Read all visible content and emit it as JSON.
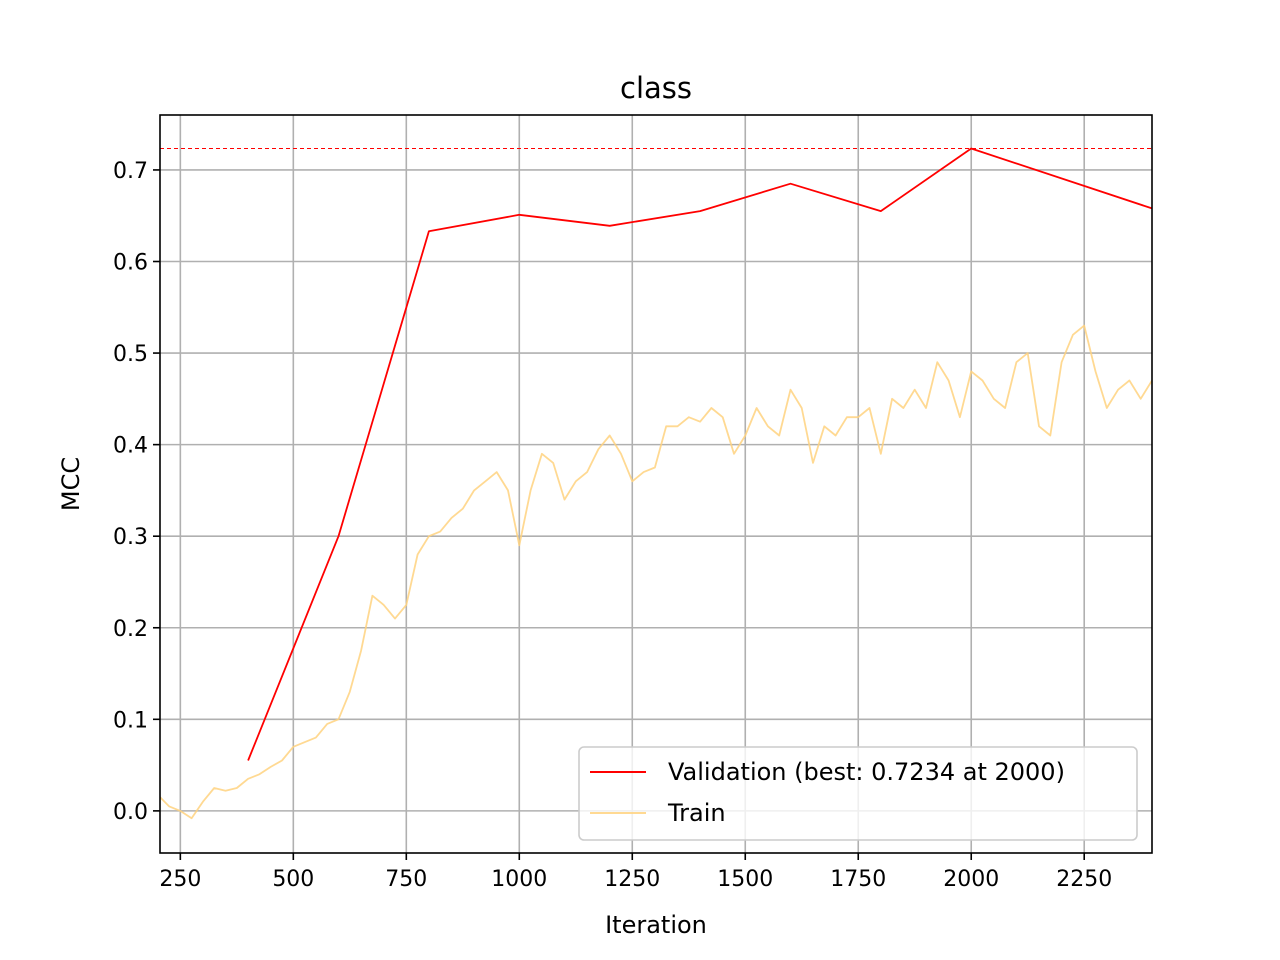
{
  "chart_data": {
    "type": "line",
    "title": "class",
    "xlabel": "Iteration",
    "ylabel": "MCC",
    "xlim": [
      205,
      2400
    ],
    "ylim": [
      -0.046,
      0.76
    ],
    "grid": true,
    "legend_position": "lower-right",
    "x_ticks": [
      250,
      500,
      750,
      1000,
      1250,
      1500,
      1750,
      2000,
      2250
    ],
    "x_tick_labels": [
      "250",
      "500",
      "750",
      "1000",
      "1250",
      "1500",
      "1750",
      "2000",
      "2250"
    ],
    "y_ticks": [
      0.0,
      0.1,
      0.2,
      0.3,
      0.4,
      0.5,
      0.6,
      0.7
    ],
    "y_tick_labels": [
      "0.0",
      "0.1",
      "0.2",
      "0.3",
      "0.4",
      "0.5",
      "0.6",
      "0.7"
    ],
    "best_line": {
      "y": 0.7234,
      "color": "#ff0000"
    },
    "series": [
      {
        "name": "Validation (best: 0.7234 at 2000)",
        "color": "#ff0000",
        "x": [
          400,
          600,
          800,
          1000,
          1200,
          1400,
          1600,
          1800,
          2000,
          2400
        ],
        "values": [
          0.055,
          0.3,
          0.633,
          0.651,
          0.639,
          0.655,
          0.685,
          0.655,
          0.7234,
          0.658
        ]
      },
      {
        "name": "Train",
        "color": "#ffd27f",
        "x": [
          205,
          225,
          250,
          275,
          300,
          325,
          350,
          375,
          400,
          425,
          450,
          475,
          500,
          525,
          550,
          575,
          600,
          625,
          650,
          675,
          700,
          725,
          750,
          775,
          800,
          825,
          850,
          875,
          900,
          925,
          950,
          975,
          1000,
          1025,
          1050,
          1075,
          1100,
          1125,
          1150,
          1175,
          1200,
          1225,
          1250,
          1275,
          1300,
          1325,
          1350,
          1375,
          1400,
          1425,
          1450,
          1475,
          1500,
          1525,
          1550,
          1575,
          1600,
          1625,
          1650,
          1675,
          1700,
          1725,
          1750,
          1775,
          1800,
          1825,
          1850,
          1875,
          1900,
          1925,
          1950,
          1975,
          2000,
          2025,
          2050,
          2075,
          2100,
          2125,
          2150,
          2175,
          2200,
          2225,
          2250,
          2275,
          2300,
          2325,
          2350,
          2375,
          2400
        ],
        "values": [
          0.015,
          0.005,
          0.0,
          -0.008,
          0.01,
          0.025,
          0.022,
          0.025,
          0.035,
          0.04,
          0.048,
          0.055,
          0.07,
          0.075,
          0.08,
          0.095,
          0.1,
          0.13,
          0.175,
          0.235,
          0.225,
          0.21,
          0.225,
          0.28,
          0.3,
          0.305,
          0.32,
          0.33,
          0.35,
          0.36,
          0.37,
          0.35,
          0.29,
          0.35,
          0.39,
          0.38,
          0.34,
          0.36,
          0.37,
          0.395,
          0.41,
          0.39,
          0.36,
          0.37,
          0.375,
          0.42,
          0.42,
          0.43,
          0.425,
          0.44,
          0.43,
          0.39,
          0.41,
          0.44,
          0.42,
          0.41,
          0.46,
          0.44,
          0.38,
          0.42,
          0.41,
          0.43,
          0.43,
          0.44,
          0.39,
          0.45,
          0.44,
          0.46,
          0.44,
          0.49,
          0.47,
          0.43,
          0.48,
          0.47,
          0.45,
          0.44,
          0.49,
          0.5,
          0.42,
          0.41,
          0.49,
          0.52,
          0.53,
          0.48,
          0.44,
          0.46,
          0.47,
          0.45,
          0.47
        ]
      }
    ]
  }
}
